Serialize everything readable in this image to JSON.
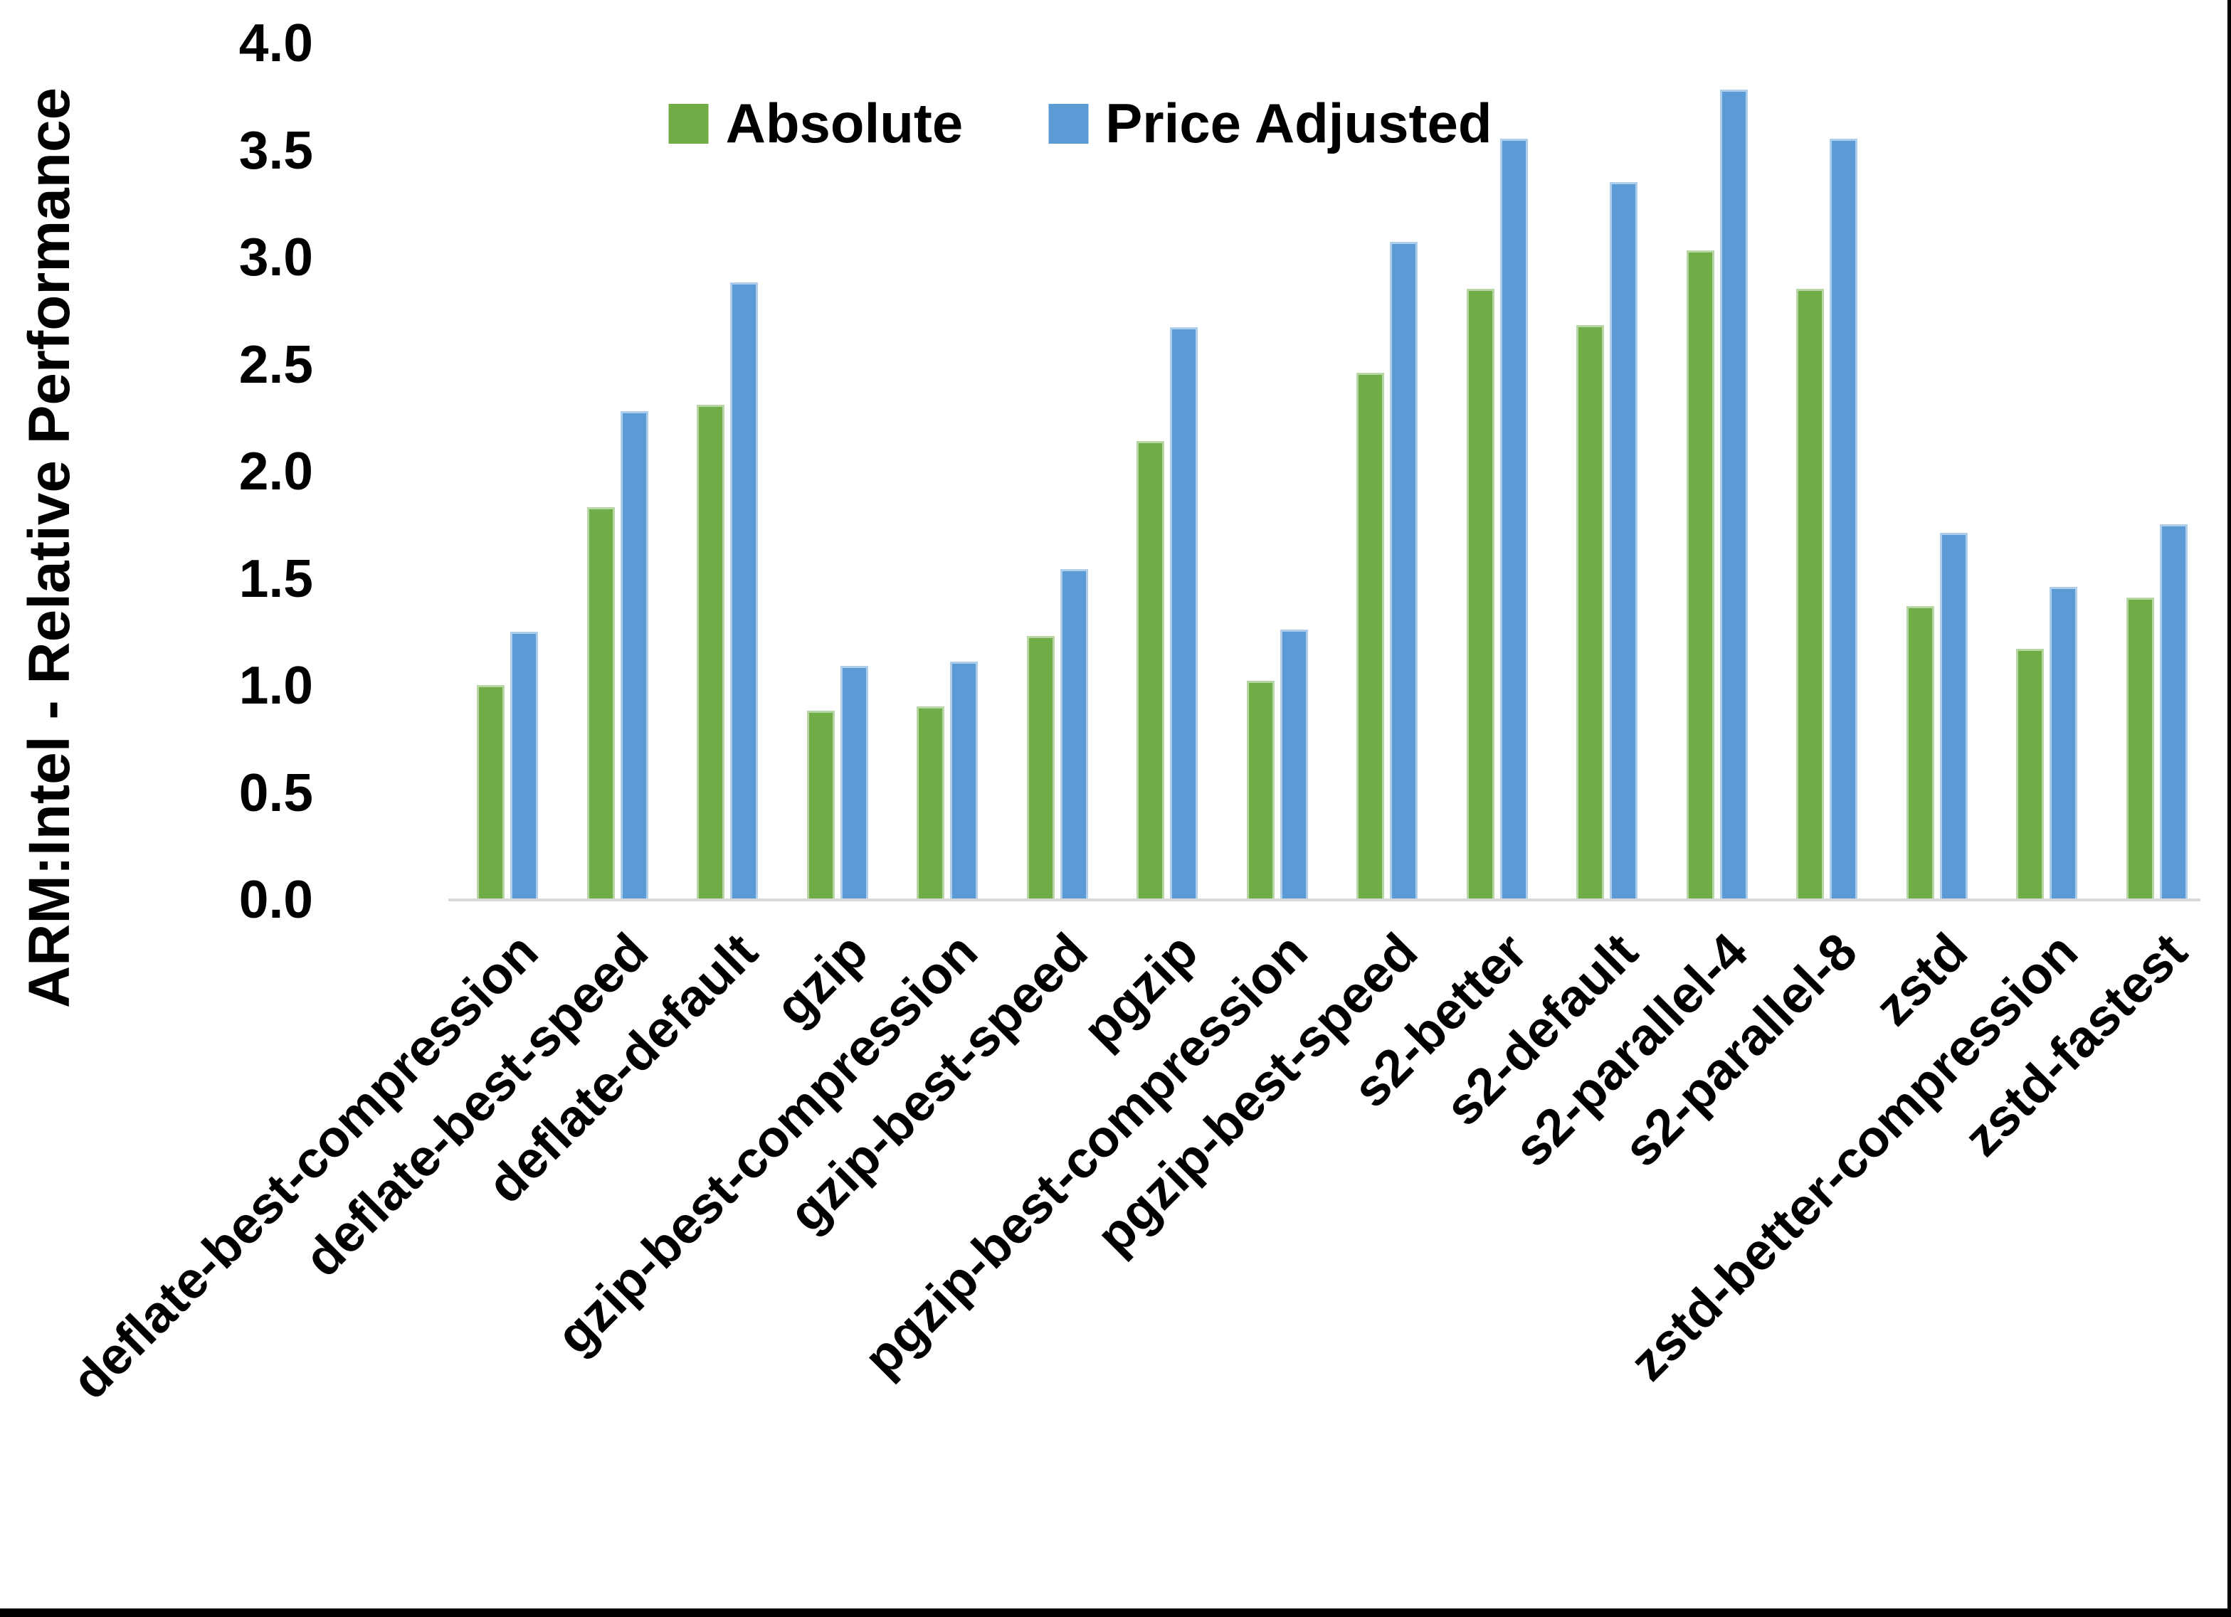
{
  "chart_data": {
    "type": "bar",
    "title": "",
    "xlabel": "",
    "ylabel": "ARM:Intel - Relative Performance",
    "ylim": [
      0,
      4.0
    ],
    "ytick_step": 0.5,
    "ytick_labels": [
      "0.0",
      "0.5",
      "1.0",
      "1.5",
      "2.0",
      "2.5",
      "3.0",
      "3.5",
      "4.0"
    ],
    "grid": "off",
    "legend_position": "top-center",
    "x_label_rotation_deg": 45,
    "categories": [
      "deflate-best-compression",
      "deflate-best-speed",
      "deflate-default",
      "gzip",
      "gzip-best-compression",
      "gzip-best-speed",
      "pgzip",
      "pgzip-best-compression",
      "pgzip-best-speed",
      "s2-better",
      "s2-default",
      "s2-parallel-4",
      "s2-parallel-8",
      "zstd",
      "zstd-better-compression",
      "zstd-fastest"
    ],
    "series": [
      {
        "name": "Absolute",
        "color": "#70AD47",
        "values": [
          1.0,
          1.83,
          2.31,
          0.88,
          0.9,
          1.23,
          2.14,
          1.02,
          2.46,
          2.85,
          2.68,
          3.03,
          2.85,
          1.37,
          1.17,
          1.41
        ]
      },
      {
        "name": "Price Adjusted",
        "color": "#5B9BD5",
        "values": [
          1.25,
          2.28,
          2.88,
          1.09,
          1.11,
          1.54,
          2.67,
          1.26,
          3.07,
          3.55,
          3.35,
          3.78,
          3.55,
          1.71,
          1.46,
          1.75
        ]
      }
    ]
  },
  "colors": {
    "background": "#ffffff",
    "axis_line": "#d9d9d9",
    "text": "#000000",
    "frame_border": "#000000"
  }
}
